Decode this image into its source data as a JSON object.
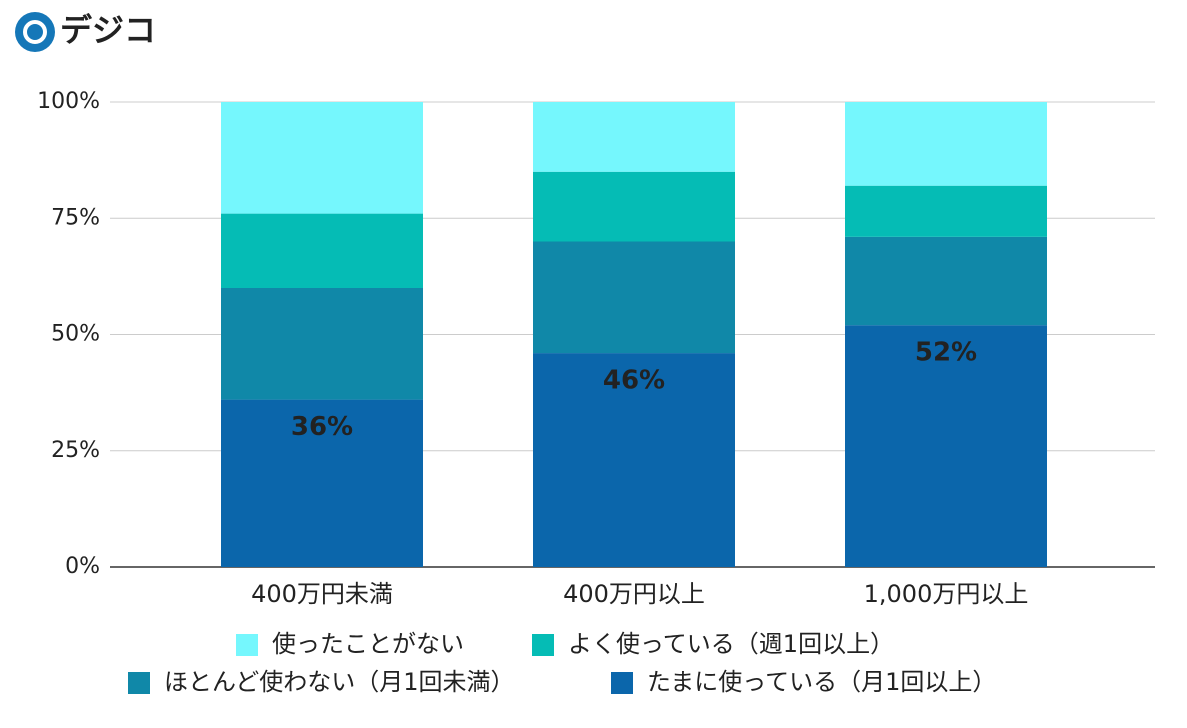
{
  "brand": "デジコ",
  "chart_data": {
    "type": "stacked_bar",
    "categories": [
      "400万円未満",
      "400万円以上",
      "1,000万円以上"
    ],
    "series": [
      {
        "name": "たまに使っている（月1回以上）",
        "color": "#0b66ab",
        "values": [
          36,
          46,
          52
        ],
        "value_labels": [
          "36%",
          "46%",
          "52%"
        ]
      },
      {
        "name": "ほとんど使わない（月1回未満）",
        "color": "#1088a8",
        "values": [
          24,
          24,
          19
        ]
      },
      {
        "name": "よく使っている（週1回以上）",
        "color": "#05bcb5",
        "values": [
          16,
          15,
          11
        ]
      },
      {
        "name": "使ったことがない",
        "color": "#75f7fd",
        "values": [
          24,
          15,
          18
        ]
      }
    ],
    "ylim": [
      0,
      100
    ],
    "yticks": [
      {
        "value": 0,
        "label": "0%"
      },
      {
        "value": 25,
        "label": "25%"
      },
      {
        "value": 50,
        "label": "50%"
      },
      {
        "value": 75,
        "label": "75%"
      },
      {
        "value": 100,
        "label": "100%"
      }
    ],
    "grid": true
  }
}
